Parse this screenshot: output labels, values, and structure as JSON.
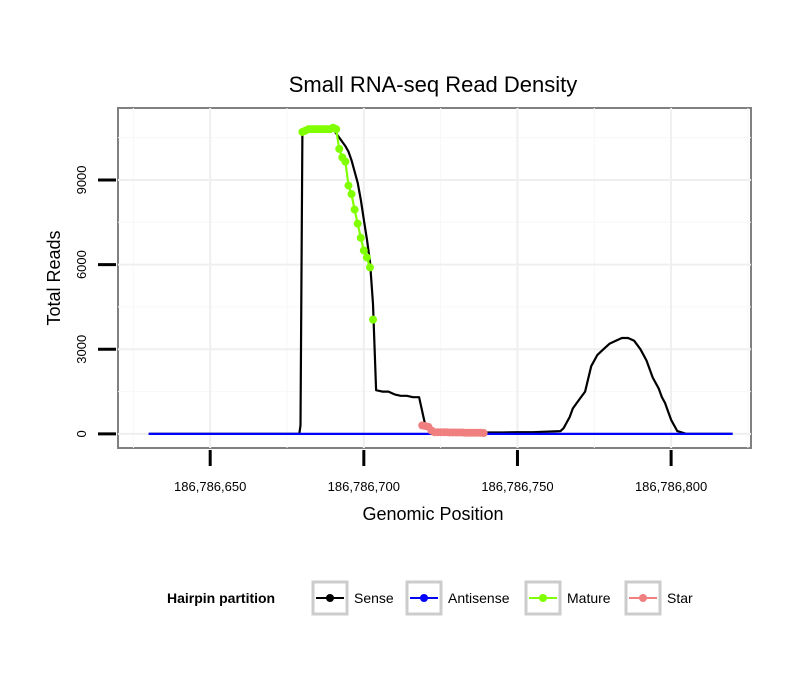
{
  "chart_data": {
    "type": "line",
    "title": "Small RNA-seq Read Density",
    "xlabel": "Genomic Position",
    "ylabel": "Total Reads",
    "xlim": [
      186786620,
      186786826
    ],
    "ylim": [
      -500,
      11550
    ],
    "x_ticks": [
      186786650,
      186786700,
      186786750,
      186786800
    ],
    "x_tick_labels": [
      "186,786,650",
      "186,786,700",
      "186,786,750",
      "186,786,800"
    ],
    "y_ticks": [
      0,
      3000,
      6000,
      9000
    ],
    "y_tick_labels": [
      "0",
      "3000",
      "6000",
      "9000"
    ],
    "grid": true,
    "legend": {
      "title": "Hairpin partition",
      "position": "bottom",
      "entries": [
        "Sense",
        "Antisense",
        "Mature",
        "Star"
      ]
    },
    "series": [
      {
        "name": "Sense",
        "color": "#000000",
        "marker": false,
        "x": [
          186786630,
          186786679,
          186786679.4,
          186786680,
          186786681,
          186786685,
          186786690,
          186786694,
          186786695,
          186786696,
          186786697,
          186786698,
          186786699,
          186786700,
          186786701,
          186786702,
          186786703,
          186786704,
          186786706,
          186786708,
          186786710,
          186786712,
          186786714,
          186786716,
          186786718,
          186786720,
          186786721,
          186786722,
          186786725,
          186786730,
          186786735,
          186786740,
          186786745,
          186786750,
          186786755,
          186786760,
          186786764,
          186786765,
          186786766,
          186786767,
          186786768,
          186786770,
          186786772,
          186786774,
          186786776,
          186786778,
          186786780,
          186786782,
          186786784,
          186786786,
          186786788,
          186786790,
          186786792,
          186786794,
          186786796,
          186786797,
          186786798,
          186786799,
          186786800,
          186786802,
          186786805,
          186786808,
          186786812,
          186786820
        ],
        "y": [
          0,
          0,
          300,
          10700,
          10800,
          10800,
          10800,
          10200,
          10000,
          9700,
          9300,
          8900,
          8300,
          7600,
          6900,
          6100,
          4600,
          1550,
          1500,
          1500,
          1400,
          1350,
          1350,
          1300,
          1300,
          300,
          200,
          100,
          50,
          40,
          40,
          50,
          50,
          60,
          60,
          80,
          100,
          200,
          400,
          600,
          900,
          1200,
          1500,
          2400,
          2800,
          3000,
          3200,
          3300,
          3400,
          3400,
          3300,
          3000,
          2600,
          2000,
          1600,
          1300,
          1100,
          800,
          500,
          100,
          0,
          0,
          0,
          0
        ]
      },
      {
        "name": "Antisense",
        "color": "#0000ff",
        "marker": false,
        "x": [
          186786630,
          186786820
        ],
        "y": [
          0,
          0
        ]
      },
      {
        "name": "Mature",
        "color": "#80ff00",
        "marker": true,
        "x": [
          186786680,
          186786681,
          186786682,
          186786683,
          186786684,
          186786685,
          186786686,
          186786687,
          186786688,
          186786689,
          186786690,
          186786691,
          186786692,
          186786693,
          186786694,
          186786695,
          186786696,
          186786697,
          186786698,
          186786699,
          186786700,
          186786701,
          186786702
        ],
        "y": [
          10700,
          10750,
          10800,
          10800,
          10800,
          10800,
          10800,
          10800,
          10800,
          10800,
          10850,
          10800,
          10100,
          9800,
          9650,
          8800,
          8500,
          7950,
          7450,
          6950,
          6500,
          6250,
          5900
        ]
      },
      {
        "name": "Mature (tail)",
        "color": "#80ff00",
        "marker": true,
        "legend": false,
        "x": [
          186786703
        ],
        "y": [
          4050
        ]
      },
      {
        "name": "Star",
        "color": "#f08080",
        "marker": true,
        "x": [
          186786719,
          186786720,
          186786721,
          186786722,
          186786723,
          186786724,
          186786725,
          186786726,
          186786727,
          186786728,
          186786729,
          186786730,
          186786731,
          186786732,
          186786733,
          186786734,
          186786735,
          186786736,
          186786737,
          186786738,
          186786739
        ],
        "y": [
          300,
          280,
          250,
          120,
          60,
          60,
          60,
          60,
          60,
          50,
          50,
          50,
          50,
          50,
          40,
          40,
          40,
          40,
          40,
          40,
          30
        ]
      }
    ]
  }
}
